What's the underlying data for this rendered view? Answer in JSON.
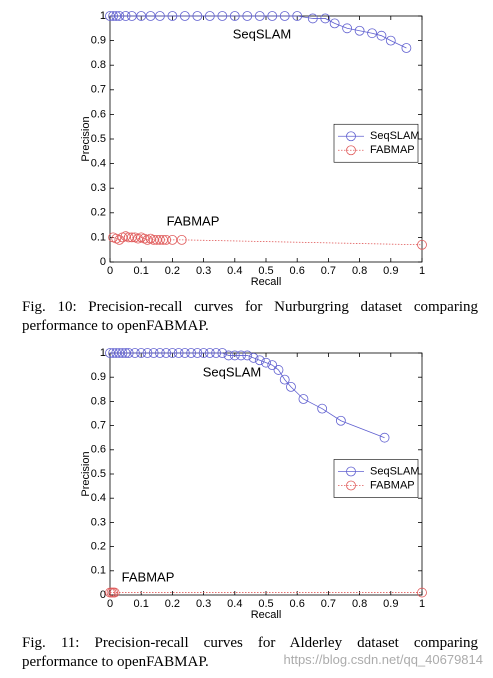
{
  "chart_data": [
    {
      "type": "line",
      "xlabel": "Recall",
      "ylabel": "Precision",
      "xlim": [
        0,
        1
      ],
      "ylim": [
        0,
        1
      ],
      "xticks": [
        0,
        0.1,
        0.2,
        0.3,
        0.4,
        0.5,
        0.6,
        0.7,
        0.8,
        0.9,
        1
      ],
      "yticks": [
        0,
        0.1,
        0.2,
        0.3,
        0.4,
        0.5,
        0.6,
        0.7,
        0.8,
        0.9,
        1
      ],
      "legend": "right",
      "annotations": [
        "SeqSLAM",
        "FABMAP"
      ],
      "series": [
        {
          "name": "SeqSLAM",
          "color": "#6060d0",
          "line": "solid",
          "x": [
            0,
            0.01,
            0.02,
            0.03,
            0.05,
            0.07,
            0.1,
            0.13,
            0.16,
            0.2,
            0.24,
            0.28,
            0.32,
            0.36,
            0.4,
            0.44,
            0.48,
            0.52,
            0.56,
            0.6,
            0.65,
            0.69,
            0.72,
            0.76,
            0.8,
            0.84,
            0.87,
            0.9,
            0.95
          ],
          "values": [
            1,
            1,
            1,
            1,
            1,
            1,
            1,
            1,
            1,
            1,
            1,
            1,
            1,
            1,
            1,
            1,
            1,
            1,
            1,
            1,
            0.99,
            0.99,
            0.97,
            0.95,
            0.94,
            0.93,
            0.92,
            0.9,
            0.87
          ]
        },
        {
          "name": "FABMAP",
          "color": "#e05a5a",
          "line": "dotted",
          "x": [
            0.01,
            0.02,
            0.03,
            0.04,
            0.05,
            0.06,
            0.07,
            0.08,
            0.09,
            0.1,
            0.11,
            0.12,
            0.13,
            0.14,
            0.15,
            0.16,
            0.17,
            0.18,
            0.2,
            0.23,
            1
          ],
          "values": [
            0.1,
            0.095,
            0.09,
            0.1,
            0.105,
            0.1,
            0.1,
            0.1,
            0.095,
            0.1,
            0.095,
            0.09,
            0.095,
            0.09,
            0.09,
            0.09,
            0.09,
            0.09,
            0.09,
            0.09,
            0.07
          ]
        }
      ],
      "caption": "Fig. 10: Precision-recall curves for Nurburgring dataset comparing performance to openFABMAP."
    },
    {
      "type": "line",
      "xlabel": "Recall",
      "ylabel": "Precision",
      "xlim": [
        0,
        1
      ],
      "ylim": [
        0,
        1
      ],
      "xticks": [
        0,
        0.1,
        0.2,
        0.3,
        0.4,
        0.5,
        0.6,
        0.7,
        0.8,
        0.9,
        1
      ],
      "yticks": [
        0,
        0.1,
        0.2,
        0.3,
        0.4,
        0.5,
        0.6,
        0.7,
        0.8,
        0.9,
        1
      ],
      "legend": "right",
      "annotations": [
        "SeqSLAM",
        "FABMAP"
      ],
      "series": [
        {
          "name": "SeqSLAM",
          "color": "#6060d0",
          "line": "solid",
          "x": [
            0,
            0.01,
            0.02,
            0.03,
            0.04,
            0.05,
            0.06,
            0.08,
            0.1,
            0.12,
            0.14,
            0.16,
            0.18,
            0.2,
            0.22,
            0.24,
            0.26,
            0.28,
            0.3,
            0.32,
            0.34,
            0.36,
            0.38,
            0.4,
            0.42,
            0.44,
            0.46,
            0.48,
            0.5,
            0.52,
            0.54,
            0.56,
            0.58,
            0.62,
            0.68,
            0.74,
            0.88
          ],
          "values": [
            1,
            1,
            1,
            1,
            1,
            1,
            1,
            1,
            1,
            1,
            1,
            1,
            1,
            1,
            1,
            1,
            1,
            1,
            1,
            1,
            1,
            1,
            0.99,
            0.99,
            0.99,
            0.99,
            0.98,
            0.97,
            0.96,
            0.95,
            0.93,
            0.89,
            0.86,
            0.81,
            0.77,
            0.72,
            0.65
          ]
        },
        {
          "name": "FABMAP",
          "color": "#e05a5a",
          "line": "dotted",
          "x": [
            0,
            0.005,
            0.01,
            0.015,
            1
          ],
          "values": [
            0.01,
            0.01,
            0.01,
            0.01,
            0.01
          ]
        }
      ],
      "caption": "Fig. 11: Precision-recall curves for Alderley dataset comparing performance to openFABMAP."
    }
  ],
  "watermark": "https://blog.csdn.net/qq_40679814"
}
